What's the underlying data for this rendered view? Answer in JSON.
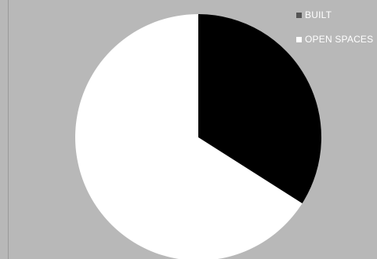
{
  "chart_data": {
    "type": "pie",
    "title": "",
    "slices": [
      {
        "label": "BUILT",
        "value": 34,
        "color": "#000000"
      },
      {
        "label": "OPEN SPACES",
        "value": 66,
        "color": "#ffffff"
      }
    ],
    "legend": {
      "placement": "top-right",
      "items": [
        {
          "label": "BUILT",
          "swatch_color": "#555555"
        },
        {
          "label": "OPEN SPACES",
          "swatch_color": "#ffffff"
        }
      ]
    }
  },
  "colors": {
    "background": "#b8b8b8"
  }
}
